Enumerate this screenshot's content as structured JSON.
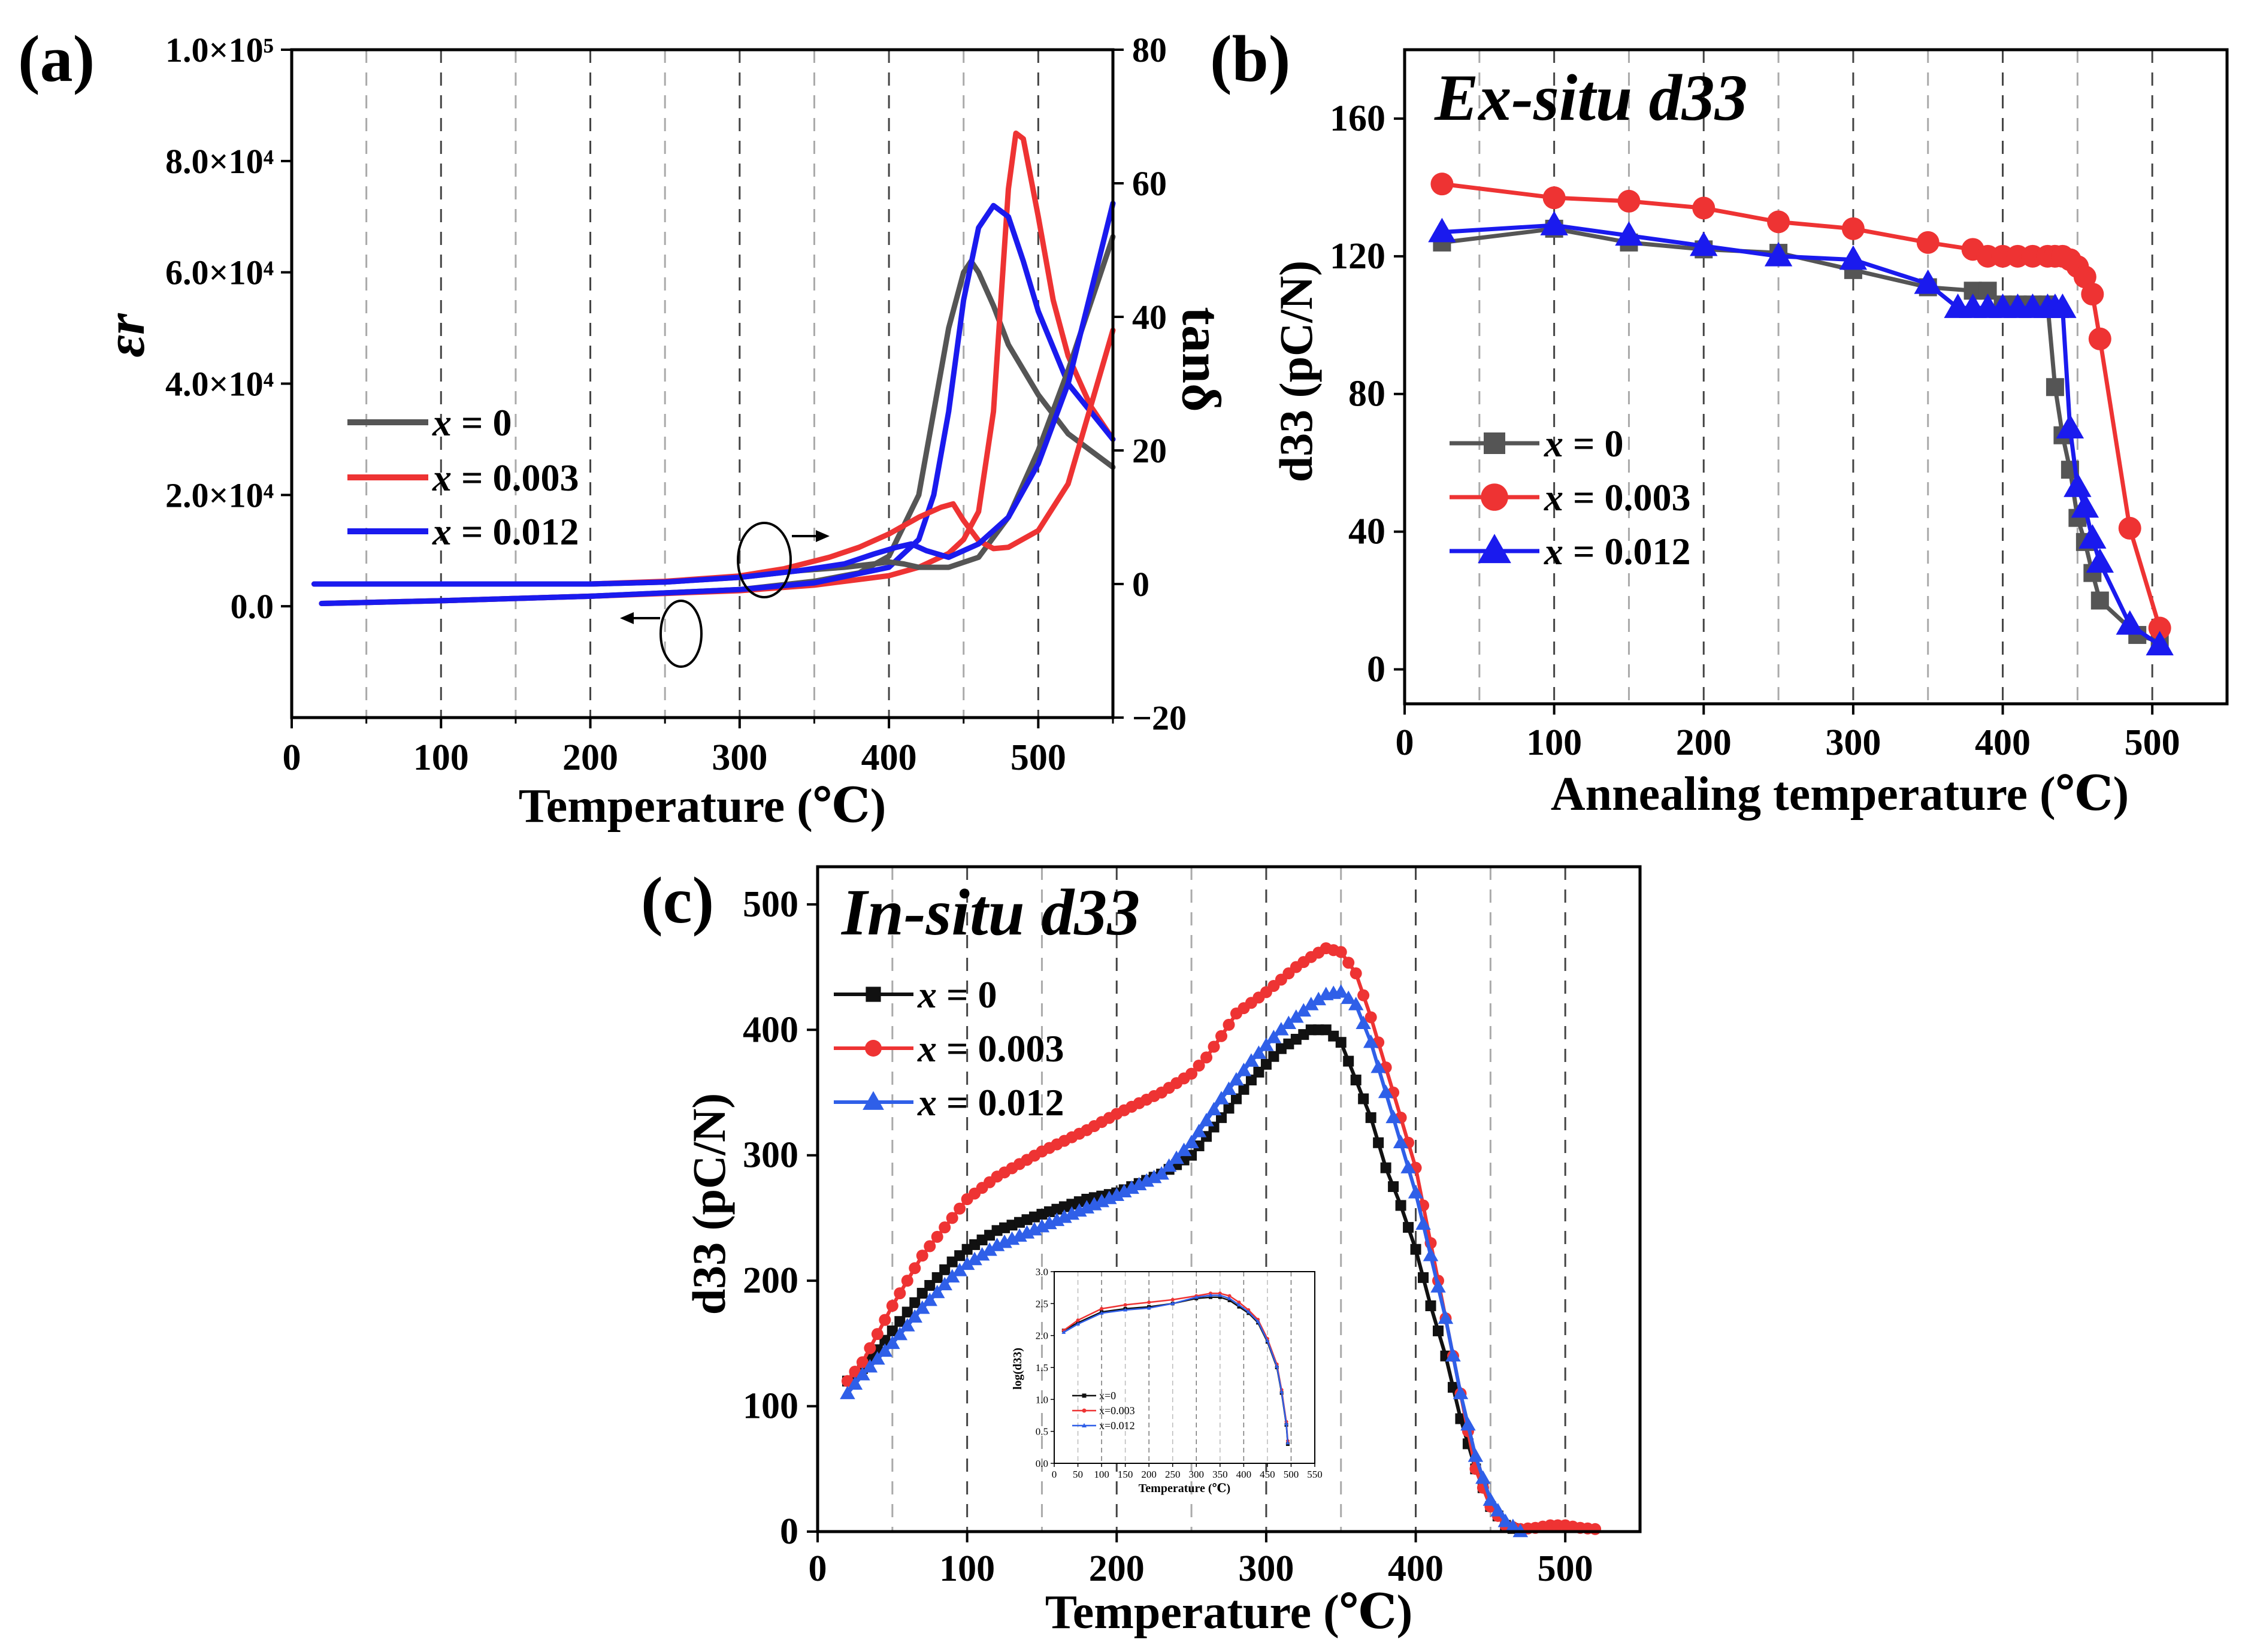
{
  "figure": {
    "panels": [
      {
        "id": "a",
        "panel_label": "(a)",
        "annotation": "",
        "xlabel": "Temperature (℃)",
        "ylabel_left": "εr",
        "ylabel_right": "tanδ",
        "xticks": [
          "0",
          "100",
          "200",
          "300",
          "400",
          "500"
        ],
        "yticks_left": [
          "0.0",
          "2.0×10⁴",
          "4.0×10⁴",
          "6.0×10⁴",
          "8.0×10⁴",
          "1.0×10⁵"
        ],
        "yticks_right": [
          "−20",
          "0",
          "20",
          "40",
          "60",
          "80"
        ],
        "legend": [
          "x = 0",
          "x = 0.003",
          "x = 0.012"
        ]
      },
      {
        "id": "b",
        "panel_label": "(b)",
        "annotation": "Ex-situ d33",
        "xlabel": "Annealing temperature (℃)",
        "ylabel": "d33 (pC/N)",
        "xticks": [
          "0",
          "100",
          "200",
          "300",
          "400",
          "500"
        ],
        "yticks": [
          "0",
          "40",
          "80",
          "120",
          "160"
        ],
        "legend": [
          "x = 0",
          "x = 0.003",
          "x = 0.012"
        ]
      },
      {
        "id": "c",
        "panel_label": "(c)",
        "annotation": "In-situ d33",
        "xlabel": "Temperature (℃)",
        "ylabel": "d33 (pC/N)",
        "xticks": [
          "0",
          "100",
          "200",
          "300",
          "400",
          "500"
        ],
        "yticks": [
          "0",
          "100",
          "200",
          "300",
          "400",
          "500"
        ],
        "legend": [
          "x = 0",
          "x = 0.003",
          "x = 0.012"
        ],
        "inset": {
          "xlabel": "Temperature (℃)",
          "ylabel": "log(d33)",
          "xticks": [
            "0",
            "50",
            "100",
            "150",
            "200",
            "250",
            "300",
            "350",
            "400",
            "450",
            "500",
            "550"
          ],
          "yticks": [
            "0.0",
            "0.5",
            "1.0",
            "1.5",
            "2.0",
            "2.5",
            "3.0"
          ],
          "legend": [
            "x=0",
            "x=0.003",
            "x=0.012"
          ]
        }
      }
    ]
  },
  "colors": {
    "x0": "#555555",
    "x0_c": "#111111",
    "x003": "#ee3333",
    "x012": "#1a1aee",
    "x012_c": "#2f5fe8"
  },
  "chart_data": [
    {
      "panel": "a",
      "type": "line",
      "xlim": [
        0,
        550
      ],
      "ylim_left": [
        -20000,
        100000
      ],
      "ylim_right": [
        -20,
        80
      ],
      "series": [
        {
          "name": "x = 0",
          "axis": "left",
          "x": [
            20,
            100,
            200,
            300,
            350,
            380,
            400,
            420,
            430,
            440,
            450,
            455,
            460,
            470,
            480,
            500,
            520,
            550
          ],
          "y": [
            500,
            1000,
            1800,
            3000,
            4500,
            6000,
            9000,
            20000,
            35000,
            50000,
            60000,
            62000,
            60000,
            54000,
            47000,
            38000,
            31000,
            25000
          ]
        },
        {
          "name": "x = 0.003",
          "axis": "left",
          "x": [
            20,
            100,
            200,
            300,
            350,
            400,
            420,
            440,
            450,
            460,
            470,
            475,
            480,
            485,
            490,
            500,
            510,
            520,
            535,
            550
          ],
          "y": [
            500,
            1000,
            1800,
            2800,
            3800,
            5500,
            7000,
            9500,
            12000,
            17000,
            35000,
            55000,
            75000,
            85000,
            84000,
            70000,
            55000,
            45000,
            36000,
            30000
          ]
        },
        {
          "name": "x = 0.012",
          "axis": "left",
          "x": [
            20,
            100,
            200,
            300,
            350,
            400,
            420,
            430,
            440,
            450,
            460,
            470,
            480,
            490,
            500,
            520,
            550
          ],
          "y": [
            500,
            1000,
            1800,
            3000,
            4200,
            7000,
            12000,
            20000,
            35000,
            55000,
            68000,
            72000,
            70000,
            62000,
            53000,
            40000,
            30000
          ]
        },
        {
          "name": "x = 0",
          "axis": "right",
          "x": [
            15,
            100,
            200,
            250,
            300,
            340,
            370,
            390,
            400,
            410,
            420,
            440,
            460,
            470,
            480,
            490,
            500,
            520,
            550
          ],
          "y": [
            0,
            0,
            0,
            0.3,
            1,
            2,
            2.5,
            3,
            3.3,
            3,
            2.5,
            2.5,
            4,
            7,
            10,
            15,
            20,
            32,
            52
          ]
        },
        {
          "name": "x = 0.003",
          "axis": "right",
          "x": [
            15,
            100,
            200,
            250,
            300,
            330,
            360,
            380,
            400,
            420,
            435,
            443,
            450,
            460,
            470,
            480,
            500,
            520,
            550
          ],
          "y": [
            0,
            0,
            0,
            0.4,
            1.2,
            2.3,
            4,
            5.5,
            7.5,
            10,
            11.5,
            12,
            9.5,
            6.5,
            5.3,
            5.5,
            8,
            15,
            38
          ]
        },
        {
          "name": "x = 0.012",
          "axis": "right",
          "x": [
            15,
            100,
            200,
            250,
            300,
            340,
            370,
            390,
            405,
            415,
            425,
            440,
            460,
            480,
            500,
            520,
            550
          ],
          "y": [
            0,
            0,
            0,
            0.3,
            1,
            2,
            3,
            4.5,
            5.5,
            6,
            5,
            4,
            6,
            10,
            18,
            30,
            57
          ]
        }
      ]
    },
    {
      "panel": "b",
      "type": "line",
      "xlim": [
        0,
        550
      ],
      "ylim": [
        -10,
        180
      ],
      "series": [
        {
          "name": "x = 0",
          "x": [
            25,
            100,
            150,
            200,
            250,
            300,
            350,
            380,
            390,
            400,
            410,
            420,
            430,
            435,
            440,
            445,
            450,
            455,
            460,
            465,
            490,
            505
          ],
          "y": [
            124,
            128,
            124,
            122,
            121,
            116,
            111,
            110,
            110,
            106,
            106,
            106,
            106,
            82,
            68,
            58,
            44,
            37,
            28,
            20,
            10,
            8
          ]
        },
        {
          "name": "x = 0.003",
          "x": [
            25,
            100,
            150,
            200,
            250,
            300,
            350,
            380,
            390,
            400,
            410,
            420,
            430,
            435,
            440,
            445,
            450,
            455,
            460,
            465,
            485,
            505
          ],
          "y": [
            141,
            137,
            136,
            134,
            130,
            128,
            124,
            122,
            120,
            120,
            120,
            120,
            120,
            120,
            120,
            119,
            117,
            114,
            109,
            96,
            41,
            12
          ]
        },
        {
          "name": "x = 0.012",
          "x": [
            25,
            100,
            150,
            200,
            250,
            300,
            350,
            370,
            380,
            390,
            400,
            410,
            420,
            430,
            435,
            440,
            445,
            450,
            455,
            460,
            465,
            485,
            505
          ],
          "y": [
            127,
            129,
            126,
            123,
            120,
            119,
            112,
            105,
            105,
            105,
            105,
            105,
            105,
            105,
            105,
            105,
            70,
            53,
            47,
            38,
            31,
            13,
            7
          ]
        }
      ]
    },
    {
      "panel": "c",
      "type": "line",
      "xlim": [
        0,
        550
      ],
      "ylim": [
        0,
        530
      ],
      "series": [
        {
          "name": "x = 0",
          "x": [
            20,
            30,
            50,
            70,
            90,
            100,
            120,
            150,
            180,
            200,
            230,
            250,
            270,
            290,
            310,
            330,
            340,
            350,
            360,
            370,
            380,
            390,
            400,
            410,
            420,
            430,
            440,
            450,
            460,
            470
          ],
          "y": [
            120,
            130,
            160,
            190,
            215,
            225,
            240,
            253,
            265,
            270,
            285,
            300,
            330,
            360,
            385,
            400,
            400,
            390,
            360,
            330,
            290,
            260,
            225,
            180,
            140,
            90,
            50,
            20,
            5,
            0
          ]
        },
        {
          "name": "x = 0.003",
          "x": [
            20,
            30,
            50,
            70,
            90,
            100,
            120,
            150,
            180,
            200,
            230,
            250,
            260,
            270,
            280,
            300,
            320,
            330,
            340,
            350,
            360,
            370,
            380,
            390,
            400,
            410,
            420,
            430,
            440,
            450,
            460,
            470,
            480,
            490,
            500,
            510,
            520
          ],
          "y": [
            120,
            135,
            180,
            220,
            250,
            265,
            283,
            303,
            320,
            333,
            350,
            365,
            378,
            395,
            413,
            430,
            450,
            458,
            465,
            462,
            445,
            410,
            370,
            330,
            290,
            230,
            170,
            110,
            50,
            20,
            5,
            2,
            3,
            5,
            5,
            3,
            2
          ]
        },
        {
          "name": "x = 0.012",
          "x": [
            20,
            30,
            50,
            70,
            90,
            100,
            120,
            150,
            180,
            200,
            230,
            250,
            270,
            290,
            310,
            330,
            340,
            350,
            360,
            370,
            380,
            390,
            400,
            410,
            420,
            430,
            440,
            450,
            460,
            470
          ],
          "y": [
            110,
            125,
            150,
            178,
            203,
            213,
            228,
            243,
            258,
            268,
            285,
            310,
            345,
            375,
            400,
            420,
            428,
            430,
            420,
            390,
            350,
            310,
            270,
            220,
            170,
            110,
            60,
            25,
            8,
            0
          ]
        }
      ]
    },
    {
      "panel": "c-inset",
      "type": "line",
      "xlim": [
        0,
        550
      ],
      "ylim": [
        0,
        3
      ],
      "series": [
        {
          "name": "x=0",
          "x": [
            20,
            50,
            100,
            150,
            200,
            250,
            300,
            330,
            350,
            370,
            390,
            410,
            430,
            450,
            470,
            480,
            490,
            493
          ],
          "y": [
            2.08,
            2.2,
            2.37,
            2.42,
            2.45,
            2.5,
            2.58,
            2.6,
            2.6,
            2.55,
            2.45,
            2.35,
            2.2,
            1.9,
            1.5,
            1.1,
            0.6,
            0.3
          ]
        },
        {
          "name": "x=0.003",
          "x": [
            20,
            50,
            100,
            150,
            200,
            250,
            300,
            330,
            350,
            370,
            390,
            410,
            430,
            450,
            470,
            480,
            490,
            493
          ],
          "y": [
            2.08,
            2.24,
            2.42,
            2.48,
            2.52,
            2.56,
            2.62,
            2.66,
            2.66,
            2.62,
            2.52,
            2.4,
            2.25,
            1.95,
            1.55,
            1.15,
            0.65,
            0.35
          ]
        },
        {
          "name": "x=0.012",
          "x": [
            20,
            50,
            100,
            150,
            200,
            250,
            300,
            330,
            350,
            370,
            390,
            410,
            430,
            450,
            470,
            480,
            490,
            493
          ],
          "y": [
            2.05,
            2.18,
            2.35,
            2.4,
            2.43,
            2.5,
            2.6,
            2.63,
            2.63,
            2.58,
            2.48,
            2.37,
            2.22,
            1.92,
            1.52,
            1.12,
            0.62,
            0.32
          ]
        }
      ]
    }
  ]
}
